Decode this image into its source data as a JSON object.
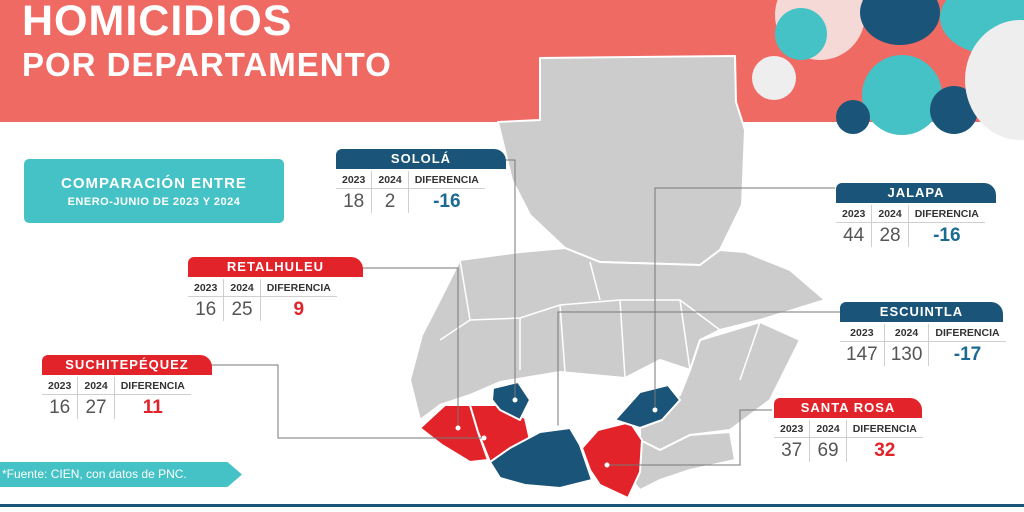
{
  "title": {
    "line1": "HOMICIDIOS",
    "line2": "POR DEPARTAMENTO"
  },
  "subtitle": {
    "line1": "COMPARACIÓN ENTRE",
    "line2": "ENERO-JUNIO DE 2023 Y 2024"
  },
  "source": "*Fuente: CIEN, con datos de PNC.",
  "columns": {
    "y2023": "2023",
    "y2024": "2024",
    "diff": "DIFERENCIA"
  },
  "departments": {
    "solola": {
      "name": "SOLOLÁ",
      "y2023": "18",
      "y2024": "2",
      "diff": "-16"
    },
    "jalapa": {
      "name": "JALAPA",
      "y2023": "44",
      "y2024": "28",
      "diff": "-16"
    },
    "retalhuleu": {
      "name": "RETALHULEU",
      "y2023": "16",
      "y2024": "25",
      "diff": "9"
    },
    "escuintla": {
      "name": "ESCUINTLA",
      "y2023": "147",
      "y2024": "130",
      "diff": "-17"
    },
    "suchitepequez": {
      "name": "SUCHITEPÉQUEZ",
      "y2023": "16",
      "y2024": "27",
      "diff": "11"
    },
    "santa_rosa": {
      "name": "SANTA ROSA",
      "y2023": "37",
      "y2024": "69",
      "diff": "32"
    }
  },
  "colors": {
    "header": "#f06a64",
    "accent": "#45c2c5",
    "increase": "#e2232a",
    "decrease": "#1a5478",
    "map_gray": "#cfcfcf"
  }
}
